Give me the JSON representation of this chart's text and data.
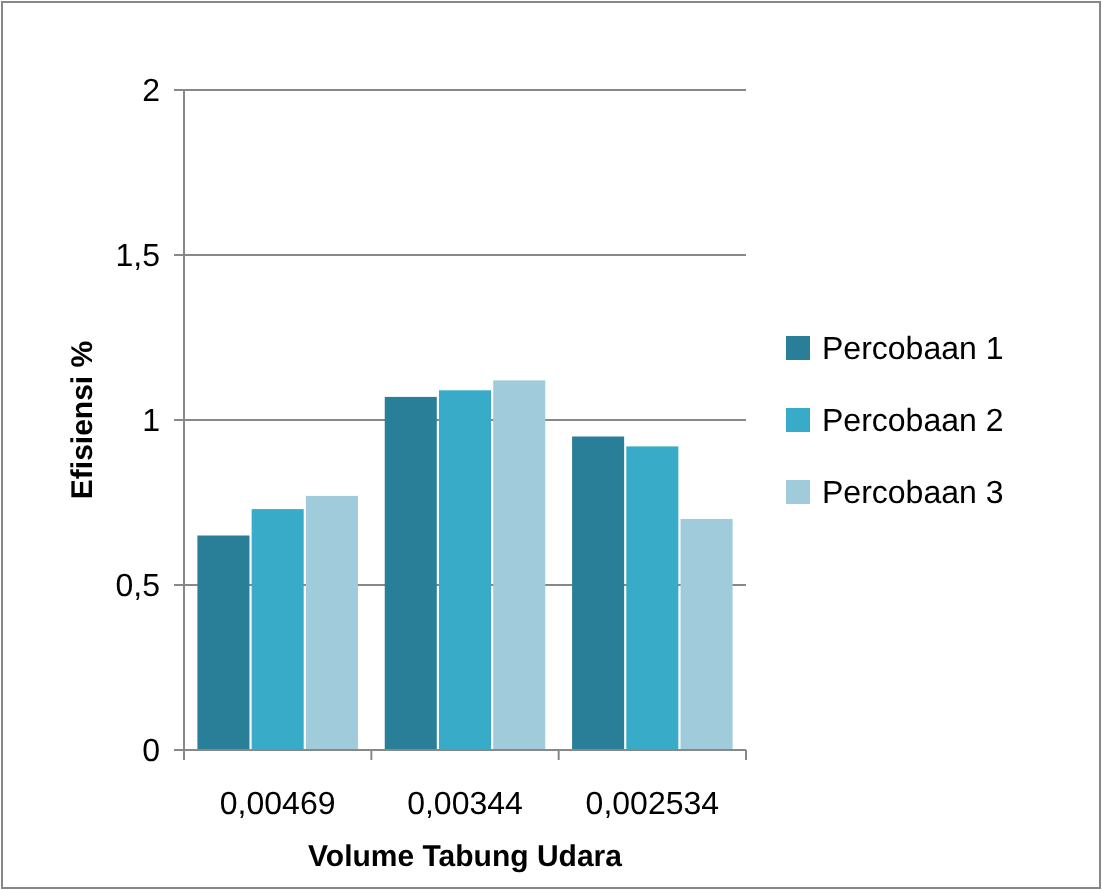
{
  "chart_data": {
    "type": "bar",
    "xlabel": "Volume Tabung Udara",
    "ylabel": "Efisiensi %",
    "categories": [
      "0,00469",
      "0,00344",
      "0,002534"
    ],
    "series": [
      {
        "name": "Percobaan 1",
        "color": "#2a7f98",
        "values": [
          0.65,
          1.07,
          0.95
        ]
      },
      {
        "name": "Percobaan 2",
        "color": "#38abc8",
        "values": [
          0.73,
          1.09,
          0.92
        ]
      },
      {
        "name": "Percobaan 3",
        "color": "#9fcbdb",
        "values": [
          0.77,
          1.12,
          0.7
        ]
      }
    ],
    "ylim": [
      0,
      2
    ],
    "yticks": [
      0,
      {
        "value": 0.5,
        "label": "0,5"
      },
      1,
      {
        "value": 1.5,
        "label": "1,5"
      },
      2
    ],
    "grid": "y",
    "legend": "right"
  }
}
